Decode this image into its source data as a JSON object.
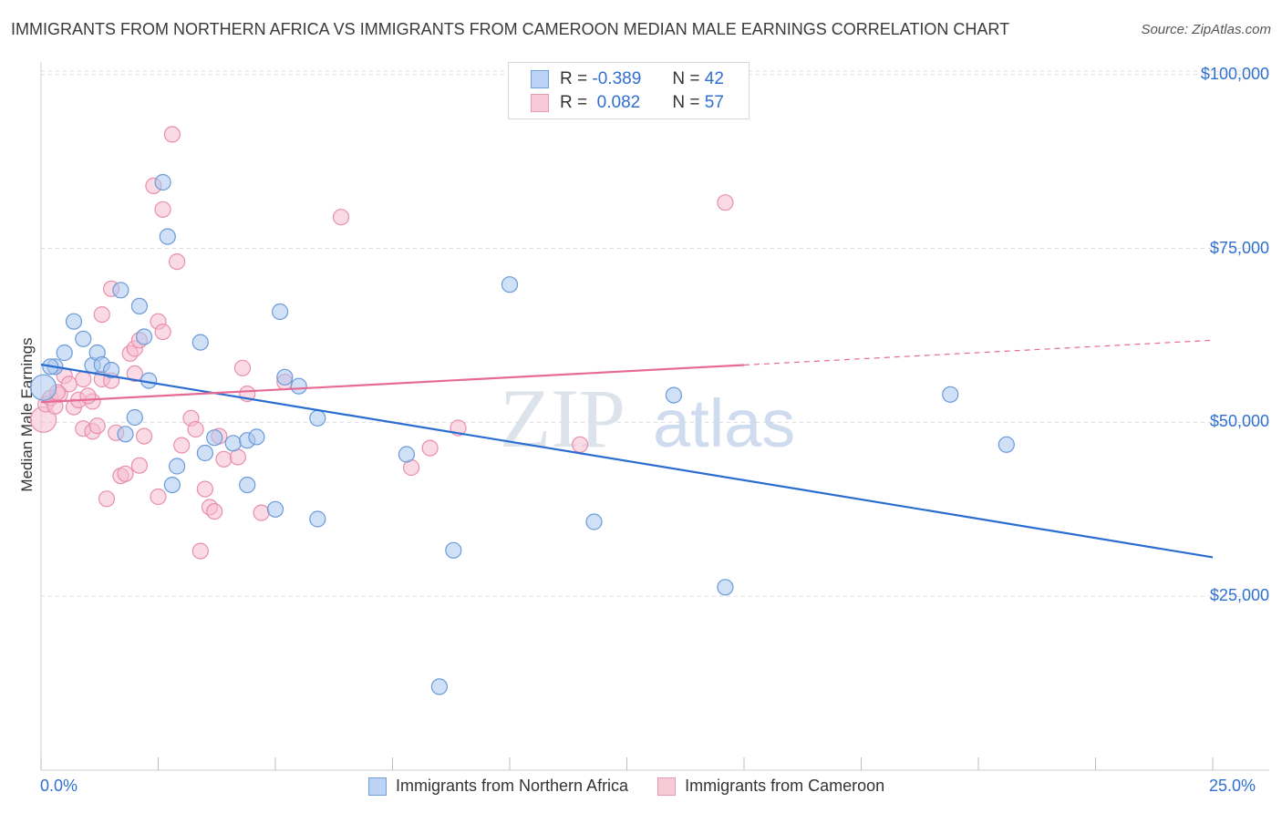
{
  "title": "IMMIGRANTS FROM NORTHERN AFRICA VS IMMIGRANTS FROM CAMEROON MEDIAN MALE EARNINGS CORRELATION CHART",
  "source": "Source: ZipAtlas.com",
  "watermark": {
    "zip": "ZIP",
    "atlas": "atlas"
  },
  "colors": {
    "blue_fill": "#a9c8f0",
    "blue_stroke": "#6a9ad8",
    "blue_line": "#2a6dd0",
    "pink_fill": "#f6bccd",
    "pink_stroke": "#e88fac",
    "pink_line": "#e76a95",
    "tick_text": "#2f6fd1"
  },
  "legend": {
    "rows": [
      {
        "r_label": "R =",
        "r_value": "-0.389",
        "n_label": "N =",
        "n_value": "42"
      },
      {
        "r_label": "R =",
        "r_value": " 0.082",
        "n_label": "N =",
        "n_value": "57"
      }
    ]
  },
  "bottom_legend": {
    "series1": "Immigrants from Northern Africa",
    "series2": "Immigrants from Cameroon"
  },
  "chart_data": {
    "type": "scatter",
    "ylabel": "Median Male Earnings",
    "xlim": [
      0,
      25
    ],
    "ylim": [
      0,
      105000
    ],
    "x_tick_labels": {
      "min": "0.0%",
      "max": "25.0%"
    },
    "y_ticks": [
      {
        "value": 25000,
        "label": "$25,000"
      },
      {
        "value": 50000,
        "label": "$50,000"
      },
      {
        "value": 75000,
        "label": "$75,000"
      },
      {
        "value": 100000,
        "label": "$100,000"
      }
    ],
    "grid": "horizontal dashed",
    "series": [
      {
        "name": "Immigrants from Northern Africa",
        "color": "blue",
        "trend": {
          "x": [
            0,
            25
          ],
          "y": [
            58300,
            30600
          ],
          "solid_to": 25
        },
        "points": [
          [
            0.05,
            55000
          ],
          [
            0.3,
            58000
          ],
          [
            0.5,
            60000
          ],
          [
            0.7,
            64500
          ],
          [
            0.9,
            62000
          ],
          [
            1.1,
            58200
          ],
          [
            1.2,
            60000
          ],
          [
            1.3,
            58300
          ],
          [
            1.5,
            57500
          ],
          [
            1.7,
            69000
          ],
          [
            1.8,
            48300
          ],
          [
            2.0,
            50700
          ],
          [
            2.1,
            66700
          ],
          [
            2.2,
            62300
          ],
          [
            2.3,
            56000
          ],
          [
            2.6,
            84500
          ],
          [
            2.7,
            76700
          ],
          [
            2.9,
            43700
          ],
          [
            2.8,
            41000
          ],
          [
            3.4,
            61500
          ],
          [
            3.5,
            45600
          ],
          [
            3.7,
            47800
          ],
          [
            4.1,
            47000
          ],
          [
            4.4,
            47400
          ],
          [
            4.6,
            47900
          ],
          [
            4.4,
            41000
          ],
          [
            5.0,
            37500
          ],
          [
            5.1,
            65900
          ],
          [
            5.2,
            56500
          ],
          [
            5.5,
            55200
          ],
          [
            5.9,
            36100
          ],
          [
            5.9,
            50600
          ],
          [
            7.8,
            45400
          ],
          [
            8.8,
            31600
          ],
          [
            10.0,
            69800
          ],
          [
            11.8,
            35700
          ],
          [
            13.5,
            53900
          ],
          [
            14.6,
            26300
          ],
          [
            19.4,
            54000
          ],
          [
            20.6,
            46800
          ],
          [
            8.5,
            12000
          ],
          [
            0.2,
            58000
          ]
        ]
      },
      {
        "name": "Immigrants from Cameroon",
        "color": "pink",
        "trend": {
          "x": [
            0,
            25
          ],
          "y": [
            52900,
            61800
          ],
          "solid_to": 15
        },
        "points": [
          [
            0.05,
            50400
          ],
          [
            0.1,
            52600
          ],
          [
            0.2,
            53500
          ],
          [
            0.3,
            52300
          ],
          [
            0.4,
            54000
          ],
          [
            0.5,
            56700
          ],
          [
            0.6,
            55500
          ],
          [
            0.7,
            52200
          ],
          [
            0.8,
            53200
          ],
          [
            0.9,
            56200
          ],
          [
            0.9,
            49100
          ],
          [
            1.1,
            53000
          ],
          [
            1.1,
            48700
          ],
          [
            1.2,
            49500
          ],
          [
            1.3,
            56200
          ],
          [
            1.3,
            65500
          ],
          [
            1.4,
            39000
          ],
          [
            1.5,
            56000
          ],
          [
            1.5,
            69200
          ],
          [
            1.6,
            48500
          ],
          [
            1.7,
            42300
          ],
          [
            1.8,
            42600
          ],
          [
            1.9,
            59900
          ],
          [
            2.0,
            60600
          ],
          [
            2.0,
            57000
          ],
          [
            2.1,
            61800
          ],
          [
            2.1,
            43800
          ],
          [
            2.2,
            48000
          ],
          [
            2.4,
            84000
          ],
          [
            2.5,
            64500
          ],
          [
            2.5,
            39300
          ],
          [
            2.6,
            80600
          ],
          [
            2.6,
            63000
          ],
          [
            2.8,
            91400
          ],
          [
            2.9,
            73100
          ],
          [
            3.0,
            46700
          ],
          [
            3.2,
            50600
          ],
          [
            3.3,
            49000
          ],
          [
            3.4,
            31500
          ],
          [
            3.5,
            40400
          ],
          [
            3.6,
            37800
          ],
          [
            3.7,
            37200
          ],
          [
            3.8,
            48000
          ],
          [
            3.9,
            44700
          ],
          [
            4.2,
            45000
          ],
          [
            4.3,
            57800
          ],
          [
            4.4,
            54100
          ],
          [
            4.7,
            37000
          ],
          [
            5.2,
            55800
          ],
          [
            6.4,
            79500
          ],
          [
            7.9,
            43500
          ],
          [
            8.3,
            46300
          ],
          [
            8.9,
            49200
          ],
          [
            11.5,
            46800
          ],
          [
            14.6,
            81600
          ],
          [
            1.0,
            53800
          ],
          [
            0.35,
            54300
          ]
        ]
      }
    ]
  }
}
